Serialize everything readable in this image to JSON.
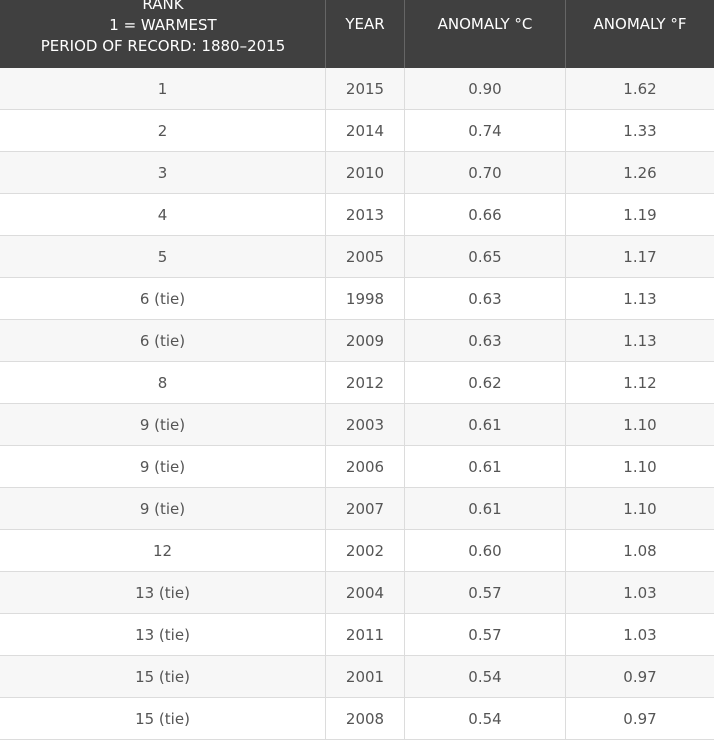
{
  "table": {
    "header": {
      "rank": [
        "RANK",
        "1 = WARMEST",
        "PERIOD OF RECORD: 1880–2015"
      ],
      "year": "YEAR",
      "anomaly_c": "ANOMALY °C",
      "anomaly_f": "ANOMALY °F"
    },
    "rows": [
      [
        "1",
        "2015",
        "0.90",
        "1.62"
      ],
      [
        "2",
        "2014",
        "0.74",
        "1.33"
      ],
      [
        "3",
        "2010",
        "0.70",
        "1.26"
      ],
      [
        "4",
        "2013",
        "0.66",
        "1.19"
      ],
      [
        "5",
        "2005",
        "0.65",
        "1.17"
      ],
      [
        "6 (tie)",
        "1998",
        "0.63",
        "1.13"
      ],
      [
        "6 (tie)",
        "2009",
        "0.63",
        "1.13"
      ],
      [
        "8",
        "2012",
        "0.62",
        "1.12"
      ],
      [
        "9 (tie)",
        "2003",
        "0.61",
        "1.10"
      ],
      [
        "9 (tie)",
        "2006",
        "0.61",
        "1.10"
      ],
      [
        "9 (tie)",
        "2007",
        "0.61",
        "1.10"
      ],
      [
        "12",
        "2002",
        "0.60",
        "1.08"
      ],
      [
        "13 (tie)",
        "2004",
        "0.57",
        "1.03"
      ],
      [
        "13 (tie)",
        "2011",
        "0.57",
        "1.03"
      ],
      [
        "15 (tie)",
        "2001",
        "0.54",
        "0.97"
      ],
      [
        "15 (tie)",
        "2008",
        "0.54",
        "0.97"
      ]
    ]
  }
}
